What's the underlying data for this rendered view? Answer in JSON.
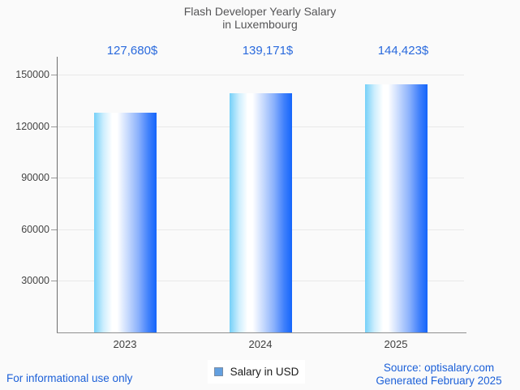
{
  "title": {
    "line1": "Flash Developer Yearly Salary",
    "line2": "in Luxembourg"
  },
  "chart_data": {
    "type": "bar",
    "title": "Flash Developer Yearly Salary in Luxembourg",
    "categories": [
      "2023",
      "2024",
      "2025"
    ],
    "series": [
      {
        "name": "Salary in USD",
        "values": [
          127680,
          139171,
          144423
        ]
      }
    ],
    "value_labels": [
      "127,680$",
      "139,171$",
      "144,423$"
    ],
    "xlabel": "",
    "ylabel": "",
    "ylim": [
      0,
      160000
    ],
    "yticks": [
      30000,
      60000,
      90000,
      120000,
      150000
    ],
    "ytick_labels": [
      "30000",
      "60000",
      "90000",
      "120000",
      "150000"
    ],
    "grid": true,
    "legend_position": "bottom-center",
    "bar_gradient_stops": [
      "#74d0f8 0%",
      "#cdeefd 15%",
      "#ffffff 29%",
      "#ffffff 37%",
      "#c3d7fd 55%",
      "#8bb1fc 71%",
      "#4181fb 87%",
      "#1465fb 100%"
    ]
  },
  "legend": {
    "label": "Salary in USD"
  },
  "footer": {
    "left": "For informational use only",
    "source_line1": "Source: optisalary.com",
    "source_line2": "Generated February 2025"
  },
  "colors": {
    "background": "#fafafa",
    "title_text": "#555557",
    "value_label": "#2a6add",
    "footer_link": "#1c60d8",
    "axis_text": "#444444",
    "x_label_text": "#3f3f3f",
    "gridline": "#e9e9e9",
    "y_axis_line": "#6e6e6e",
    "x_axis_line": "#8f8f8f",
    "legend_swatch_fill": "#63a0e0",
    "legend_swatch_border": "#7b8da4",
    "legend_text": "#1b1b1b"
  }
}
